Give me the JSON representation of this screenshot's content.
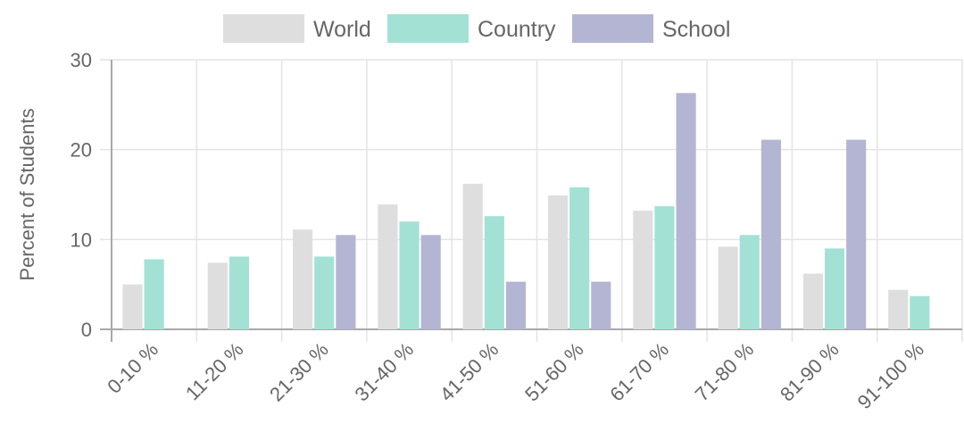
{
  "chart_data": {
    "type": "bar",
    "title": "",
    "xlabel": "",
    "ylabel": "Percent of Students",
    "ylim": [
      0,
      30
    ],
    "yticks": [
      0,
      10,
      20,
      30
    ],
    "grid": true,
    "legend_position": "top",
    "categories": [
      "0-10 %",
      "11-20 %",
      "21-30 %",
      "31-40 %",
      "41-50 %",
      "51-60 %",
      "61-70 %",
      "71-80 %",
      "81-90 %",
      "91-100 %"
    ],
    "series": [
      {
        "name": "World",
        "color": "#dedede",
        "values": [
          5,
          7.4,
          11.1,
          13.9,
          16.2,
          14.9,
          13.2,
          9.2,
          6.2,
          4.4
        ]
      },
      {
        "name": "Country",
        "color": "#a3e1d5",
        "values": [
          7.8,
          8.1,
          8.1,
          12,
          12.6,
          15.8,
          13.7,
          10.5,
          9,
          3.7
        ]
      },
      {
        "name": "School",
        "color": "#b4b5d3",
        "values": [
          0,
          0,
          10.5,
          10.5,
          5.3,
          5.3,
          26.3,
          21.1,
          21.1,
          0
        ]
      }
    ]
  }
}
